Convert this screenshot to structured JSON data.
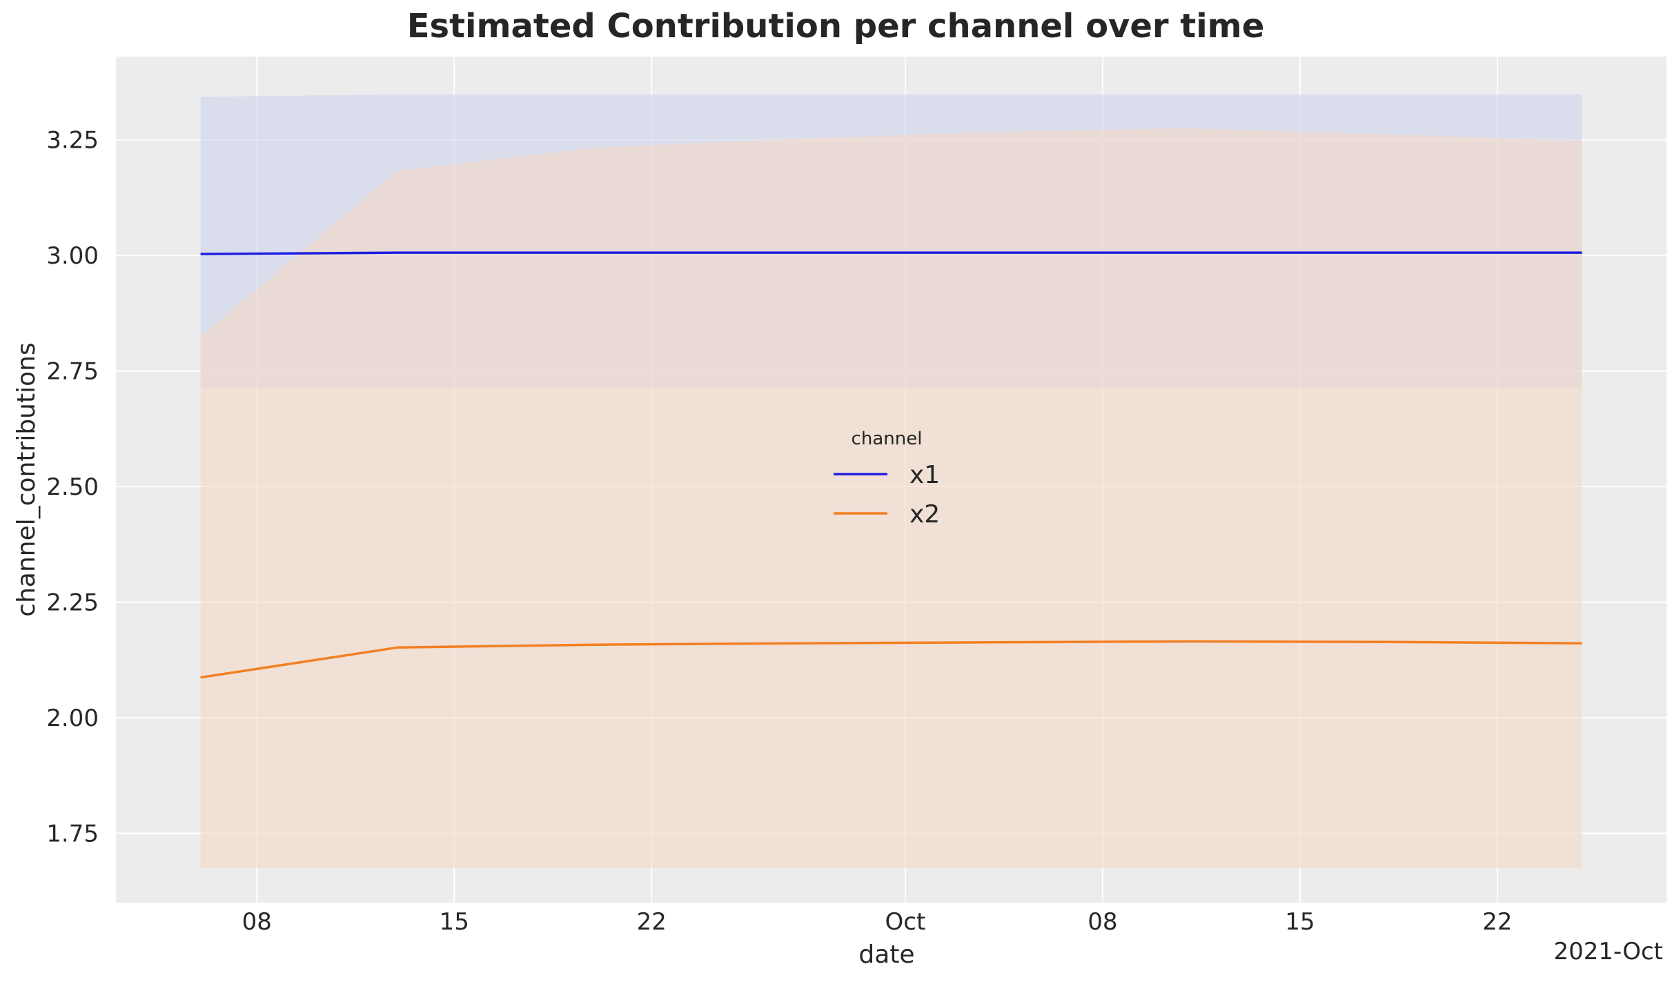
{
  "chart_data": {
    "type": "line",
    "title": "Estimated Contribution per channel over time",
    "xlabel": "date",
    "ylabel": "channel_contributions",
    "x_offset_label": "2021-Oct",
    "x": [
      "2021-09-06",
      "2021-09-13",
      "2021-09-20",
      "2021-09-27",
      "2021-10-04",
      "2021-10-11",
      "2021-10-18",
      "2021-10-25"
    ],
    "xlim": [
      "2021-09-03",
      "2021-10-28"
    ],
    "x_ticks": [
      {
        "date": "2021-09-08",
        "label": "08"
      },
      {
        "date": "2021-09-15",
        "label": "15"
      },
      {
        "date": "2021-09-22",
        "label": "22"
      },
      {
        "date": "2021-10-01",
        "label": "Oct"
      },
      {
        "date": "2021-10-08",
        "label": "08"
      },
      {
        "date": "2021-10-15",
        "label": "15"
      },
      {
        "date": "2021-10-22",
        "label": "22"
      }
    ],
    "ylim": [
      1.6,
      3.43
    ],
    "y_ticks": [
      1.75,
      2.0,
      2.25,
      2.5,
      2.75,
      3.0,
      3.25
    ],
    "y_tick_labels": [
      "1.75",
      "2.00",
      "2.25",
      "2.50",
      "2.75",
      "3.00",
      "3.25"
    ],
    "grid": true,
    "legend": {
      "title": "channel",
      "placement": "center"
    },
    "series": [
      {
        "name": "x1",
        "color": "#1f1fe0",
        "band_color": "#cfd3ec",
        "values": [
          3.003,
          3.006,
          3.006,
          3.006,
          3.006,
          3.006,
          3.006,
          3.006
        ],
        "band_low": [
          2.714,
          2.714,
          2.714,
          2.714,
          2.714,
          2.714,
          2.714,
          2.714
        ],
        "band_high": [
          3.343,
          3.348,
          3.348,
          3.348,
          3.348,
          3.348,
          3.348,
          3.348
        ]
      },
      {
        "name": "x2",
        "color": "#f28022",
        "band_color": "#f5d9c6",
        "values": [
          2.087,
          2.152,
          2.158,
          2.161,
          2.163,
          2.165,
          2.164,
          2.161
        ],
        "band_low": [
          1.675,
          1.675,
          1.675,
          1.675,
          1.675,
          1.675,
          1.675,
          1.675
        ],
        "band_high": [
          2.825,
          3.183,
          3.233,
          3.252,
          3.267,
          3.275,
          3.262,
          3.248
        ]
      }
    ]
  }
}
